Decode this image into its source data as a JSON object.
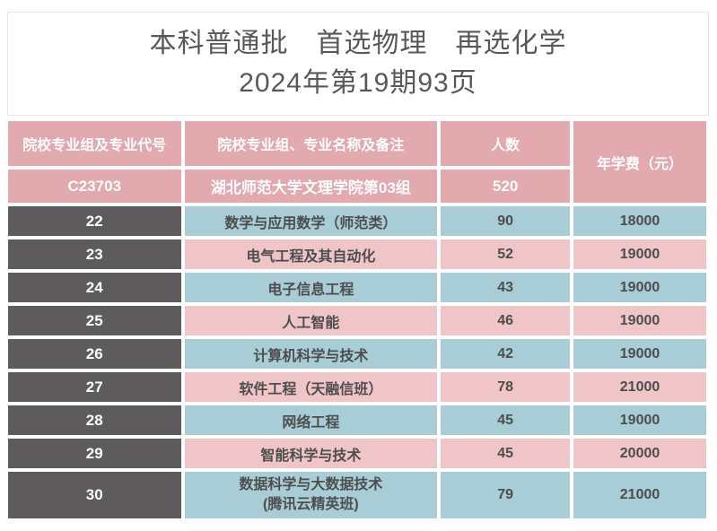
{
  "title": {
    "line1": "本科普通批　首选物理　再选化学",
    "line2": "2024年第19期93页"
  },
  "table": {
    "headers": {
      "group_code": "院校专业组及专业代号",
      "group_name": "院校专业组、专业名称及备注",
      "count": "人数",
      "fee": "年学费（元）"
    },
    "group_row": {
      "code": "C23703",
      "name": "湖北师范大学文理学院第03组",
      "count": "520"
    },
    "rows": [
      {
        "code": "22",
        "major": "数学与应用数学（师范类）",
        "count": "90",
        "fee": "18000",
        "tone": "blue"
      },
      {
        "code": "23",
        "major": "电气工程及其自动化",
        "count": "52",
        "fee": "19000",
        "tone": "pink"
      },
      {
        "code": "24",
        "major": "电子信息工程",
        "count": "43",
        "fee": "19000",
        "tone": "blue"
      },
      {
        "code": "25",
        "major": "人工智能",
        "count": "46",
        "fee": "19000",
        "tone": "pink"
      },
      {
        "code": "26",
        "major": "计算机科学与技术",
        "count": "42",
        "fee": "19000",
        "tone": "blue"
      },
      {
        "code": "27",
        "major": "软件工程（天融信班）",
        "count": "78",
        "fee": "21000",
        "tone": "pink"
      },
      {
        "code": "28",
        "major": "网络工程",
        "count": "45",
        "fee": "19000",
        "tone": "blue"
      },
      {
        "code": "29",
        "major": "智能科学与技术",
        "count": "45",
        "fee": "20000",
        "tone": "pink"
      },
      {
        "code": "30",
        "major": "数据科学与大数据技术",
        "major_line2": "(腾讯云精英班)",
        "count": "79",
        "fee": "21000",
        "tone": "blue"
      }
    ],
    "colors": {
      "header_pink": "#e2a9ae",
      "row_pink": "#f0c5c8",
      "row_blue": "#a8cdd7",
      "code_gray": "#5d5b5c",
      "text_gray": "#4d4d4d",
      "title_gray": "#57585a"
    }
  }
}
